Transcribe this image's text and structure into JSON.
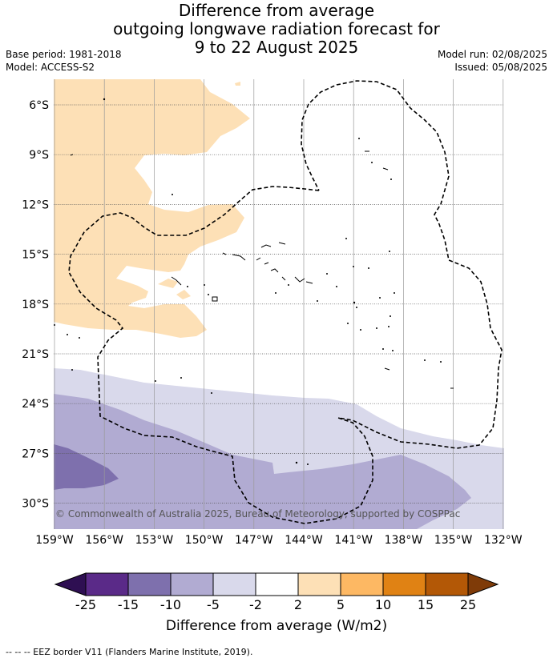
{
  "title": {
    "line1": "Difference from average",
    "line2": "outgoing longwave radiation forecast for",
    "line3": "9 to 22 August 2025"
  },
  "meta": {
    "base_period": "Base period: 1981-2018",
    "model": "Model: ACCESS-S2",
    "model_run": "Model run: 02/08/2025",
    "issued": "Issued: 05/08/2025"
  },
  "map": {
    "lat_labels": [
      "6°S",
      "9°S",
      "12°S",
      "15°S",
      "18°S",
      "21°S",
      "24°S",
      "27°S",
      "30°S"
    ],
    "lon_labels": [
      "159°W",
      "156°W",
      "153°W",
      "150°W",
      "147°W",
      "144°W",
      "141°W",
      "138°W",
      "135°W",
      "132°W"
    ],
    "copyright": "© Commonwealth of Australia 2025, Bureau of Meteorology, supported by COSPPac"
  },
  "colorbar": {
    "ticks": [
      "-25",
      "-15",
      "-10",
      "-5",
      "-2",
      "2",
      "5",
      "10",
      "15",
      "25"
    ],
    "colors": [
      "#2e0f52",
      "#5a2a88",
      "#7e70ad",
      "#b1abd2",
      "#d9d9eb",
      "#ffffff",
      "#fde0b6",
      "#fdb863",
      "#e08214",
      "#b35806",
      "#7f3b08"
    ],
    "label": "Difference from average (W/m2)"
  },
  "footnote": "--  --  -- EEZ border V11 (Flanders Marine Institute, 2019)."
}
